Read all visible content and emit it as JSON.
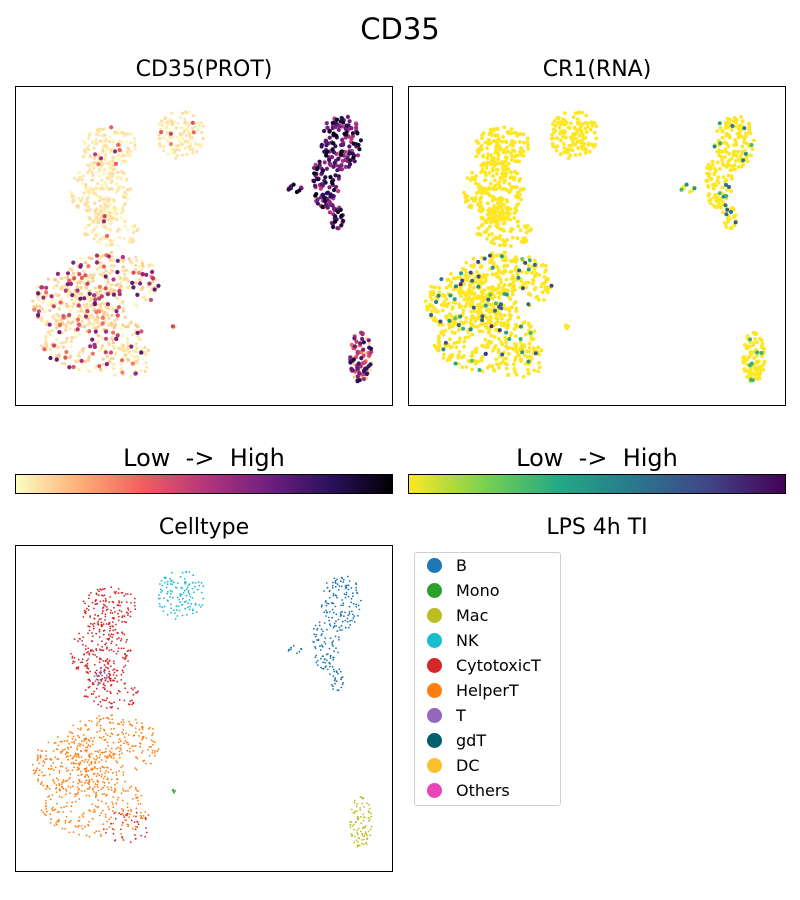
{
  "figure": {
    "title": "CD35"
  },
  "panels": {
    "prot": {
      "title": "CD35(PROT)"
    },
    "rna": {
      "title": "CR1(RNA)"
    },
    "celltype": {
      "title": "Celltype"
    },
    "condition": {
      "title": "LPS 4h TI"
    }
  },
  "colorbars": {
    "prot": {
      "label": "Low  ->  High",
      "colormap": "magma_r",
      "stops": [
        "#fcfdbf",
        "#feb078",
        "#f1605d",
        "#b5367a",
        "#721f81",
        "#2c115f",
        "#000004"
      ]
    },
    "rna": {
      "label": "Low  ->  High",
      "colormap": "viridis_r",
      "stops": [
        "#fde725",
        "#7ad151",
        "#22a884",
        "#2a788e",
        "#414487",
        "#440154"
      ]
    }
  },
  "legend": {
    "items": [
      {
        "label": "B",
        "color": "#1f77b4"
      },
      {
        "label": "Mono",
        "color": "#2ca02c"
      },
      {
        "label": "Mac",
        "color": "#bcbd22"
      },
      {
        "label": "NK",
        "color": "#17becf"
      },
      {
        "label": "CytotoxicT",
        "color": "#d62728"
      },
      {
        "label": "HelperT",
        "color": "#ff7f0e"
      },
      {
        "label": "T",
        "color": "#9467bd"
      },
      {
        "label": "gdT",
        "color": "#005f6b"
      },
      {
        "label": "DC",
        "color": "#fbc02d"
      },
      {
        "label": "Others",
        "color": "#e845b8"
      }
    ]
  },
  "chart_data": [
    {
      "type": "scatter",
      "title": "CD35(PROT)",
      "colormap": "magma_r",
      "colorbar_label": "Low  ->  High",
      "xlabel": "",
      "ylabel": "",
      "grid": false,
      "clusters": [
        {
          "cell_type": "B",
          "expression": "high"
        },
        {
          "cell_type": "Mac",
          "expression": "moderate"
        },
        {
          "cell_type": "HelperT",
          "expression": "low-to-moderate, scattered"
        },
        {
          "cell_type": "CytotoxicT",
          "expression": "low"
        },
        {
          "cell_type": "NK",
          "expression": "low"
        }
      ]
    },
    {
      "type": "scatter",
      "title": "CR1(RNA)",
      "colormap": "viridis_r",
      "colorbar_label": "Low  ->  High",
      "xlabel": "",
      "ylabel": "",
      "grid": false,
      "clusters": [
        {
          "cell_type": "B",
          "expression": "low, scattered positive"
        },
        {
          "cell_type": "HelperT",
          "expression": "low, scattered positive"
        },
        {
          "cell_type": "Mac",
          "expression": "low, sparse positive"
        },
        {
          "cell_type": "CytotoxicT",
          "expression": "none"
        },
        {
          "cell_type": "NK",
          "expression": "none"
        }
      ]
    },
    {
      "type": "scatter",
      "title": "Celltype",
      "xlabel": "",
      "ylabel": "",
      "grid": false,
      "legend_title": "LPS 4h TI",
      "legend_position": "right",
      "categories": [
        "B",
        "Mono",
        "Mac",
        "NK",
        "CytotoxicT",
        "HelperT",
        "T",
        "gdT",
        "DC",
        "Others"
      ]
    }
  ]
}
